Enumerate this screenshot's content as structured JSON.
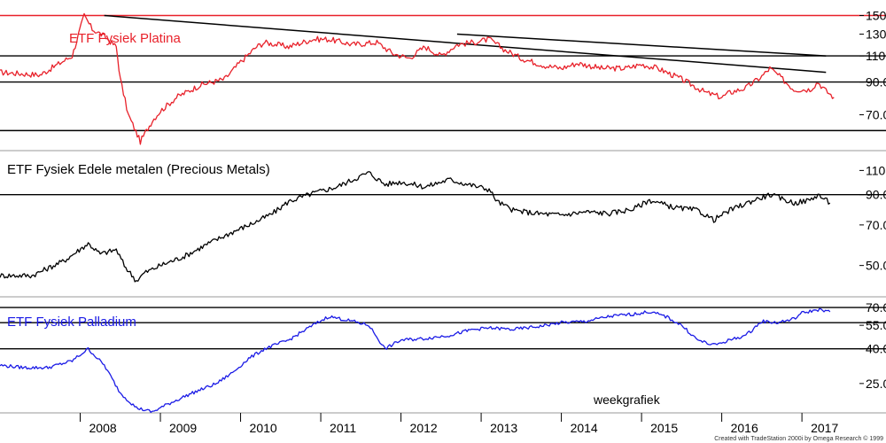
{
  "chart_data": {
    "type": "line",
    "layout": "three stacked panels, shared weekly time axis",
    "x_ticks": [
      "2008",
      "2009",
      "2010",
      "2011",
      "2012",
      "2013",
      "2014",
      "2015",
      "2016",
      "2017"
    ],
    "annotation": "weekgrafiek",
    "credit": "Created with TradeStation 2000i by Omega Research © 1999",
    "panels": [
      {
        "title": "ETF Fysiek Platina",
        "color": "#e8212a",
        "y_scale": "log",
        "y_ticks": [
          "150",
          "130",
          "110",
          "90.0",
          "70.0"
        ],
        "hlines": [
          {
            "value": 150,
            "color": "#e8212a"
          },
          {
            "value": 110,
            "color": "#000000"
          },
          {
            "value": 90,
            "color": "#000000"
          },
          {
            "value": 62,
            "color": "#000000"
          }
        ],
        "trendlines": [
          {
            "from": [
              2008.3,
              150
            ],
            "to": [
              2017.3,
              97
            ]
          },
          {
            "from": [
              2012.7,
              130
            ],
            "to": [
              2017.3,
              110
            ]
          }
        ],
        "series": [
          {
            "values": [
              [
                2007.0,
                97
              ],
              [
                2007.5,
                95
              ],
              [
                2007.9,
                110
              ],
              [
                2008.05,
                150
              ],
              [
                2008.15,
                135
              ],
              [
                2008.3,
                128
              ],
              [
                2008.45,
                118
              ],
              [
                2008.5,
                92
              ],
              [
                2008.6,
                70
              ],
              [
                2008.75,
                57
              ],
              [
                2008.9,
                67
              ],
              [
                2009.0,
                72
              ],
              [
                2009.2,
                80
              ],
              [
                2009.5,
                88
              ],
              [
                2009.8,
                92
              ],
              [
                2010.0,
                105
              ],
              [
                2010.2,
                118
              ],
              [
                2010.3,
                122
              ],
              [
                2010.6,
                118
              ],
              [
                2010.9,
                125
              ],
              [
                2011.1,
                125
              ],
              [
                2011.4,
                120
              ],
              [
                2011.7,
                122
              ],
              [
                2011.9,
                112
              ],
              [
                2012.1,
                108
              ],
              [
                2012.3,
                118
              ],
              [
                2012.5,
                110
              ],
              [
                2012.7,
                120
              ],
              [
                2012.9,
                122
              ],
              [
                2013.1,
                125
              ],
              [
                2013.3,
                115
              ],
              [
                2013.5,
                108
              ],
              [
                2013.8,
                102
              ],
              [
                2014.0,
                100
              ],
              [
                2014.2,
                104
              ],
              [
                2014.5,
                100
              ],
              [
                2014.8,
                100
              ],
              [
                2015.0,
                103
              ],
              [
                2015.2,
                100
              ],
              [
                2015.5,
                92
              ],
              [
                2015.8,
                83
              ],
              [
                2016.0,
                80
              ],
              [
                2016.1,
                83
              ],
              [
                2016.3,
                86
              ],
              [
                2016.5,
                94
              ],
              [
                2016.6,
                100
              ],
              [
                2016.7,
                95
              ],
              [
                2016.9,
                85
              ],
              [
                2017.1,
                85
              ],
              [
                2017.2,
                90
              ],
              [
                2017.3,
                84
              ],
              [
                2017.4,
                80
              ]
            ]
          }
        ]
      },
      {
        "title": "ETF Fysiek Edele metalen (Precious Metals)",
        "color": "#000000",
        "y_scale": "log",
        "y_ticks": [
          "110",
          "90.0",
          "70.0",
          "50.0"
        ],
        "hlines": [
          {
            "value": 90,
            "color": "#000000"
          }
        ],
        "series": [
          {
            "values": [
              [
                2007.0,
                46
              ],
              [
                2007.4,
                46
              ],
              [
                2007.8,
                52
              ],
              [
                2008.1,
                60
              ],
              [
                2008.25,
                55
              ],
              [
                2008.45,
                57
              ],
              [
                2008.55,
                50
              ],
              [
                2008.7,
                44
              ],
              [
                2008.8,
                47
              ],
              [
                2009.0,
                50
              ],
              [
                2009.3,
                54
              ],
              [
                2009.6,
                60
              ],
              [
                2009.9,
                66
              ],
              [
                2010.2,
                72
              ],
              [
                2010.4,
                77
              ],
              [
                2010.6,
                85
              ],
              [
                2010.9,
                91
              ],
              [
                2011.2,
                96
              ],
              [
                2011.5,
                105
              ],
              [
                2011.6,
                108
              ],
              [
                2011.8,
                98
              ],
              [
                2012.0,
                100
              ],
              [
                2012.3,
                96
              ],
              [
                2012.6,
                102
              ],
              [
                2012.9,
                97
              ],
              [
                2013.1,
                94
              ],
              [
                2013.2,
                85
              ],
              [
                2013.4,
                79
              ],
              [
                2013.7,
                77
              ],
              [
                2014.0,
                76
              ],
              [
                2014.3,
                78
              ],
              [
                2014.6,
                77
              ],
              [
                2014.9,
                80
              ],
              [
                2015.1,
                86
              ],
              [
                2015.4,
                81
              ],
              [
                2015.7,
                79
              ],
              [
                2015.9,
                73
              ],
              [
                2016.1,
                79
              ],
              [
                2016.4,
                86
              ],
              [
                2016.6,
                90
              ],
              [
                2016.9,
                84
              ],
              [
                2017.1,
                86
              ],
              [
                2017.2,
                90
              ],
              [
                2017.35,
                84
              ]
            ]
          }
        ]
      },
      {
        "title": "ETF Fysiek Palladium",
        "color": "#1a1ae6",
        "y_scale": "log",
        "y_ticks": [
          "70.0",
          "55.0",
          "40.0",
          "25.0"
        ],
        "hlines": [
          {
            "value": 70,
            "color": "#000000"
          },
          {
            "value": 57,
            "color": "#000000"
          },
          {
            "value": 40,
            "color": "#000000"
          }
        ],
        "series": [
          {
            "values": [
              [
                2007.0,
                32
              ],
              [
                2007.3,
                31
              ],
              [
                2007.6,
                31
              ],
              [
                2007.9,
                34
              ],
              [
                2008.1,
                40
              ],
              [
                2008.3,
                32
              ],
              [
                2008.5,
                22
              ],
              [
                2008.7,
                18
              ],
              [
                2008.9,
                17
              ],
              [
                2009.1,
                19
              ],
              [
                2009.4,
                22
              ],
              [
                2009.7,
                25
              ],
              [
                2009.9,
                29
              ],
              [
                2010.1,
                35
              ],
              [
                2010.3,
                40
              ],
              [
                2010.6,
                45
              ],
              [
                2010.9,
                55
              ],
              [
                2011.1,
                62
              ],
              [
                2011.4,
                58
              ],
              [
                2011.6,
                55
              ],
              [
                2011.8,
                40
              ],
              [
                2012.0,
                45
              ],
              [
                2012.3,
                46
              ],
              [
                2012.6,
                48
              ],
              [
                2012.9,
                52
              ],
              [
                2013.1,
                53
              ],
              [
                2013.4,
                52
              ],
              [
                2013.7,
                54
              ],
              [
                2014.0,
                57
              ],
              [
                2014.3,
                58
              ],
              [
                2014.6,
                62
              ],
              [
                2014.9,
                64
              ],
              [
                2015.1,
                66
              ],
              [
                2015.3,
                62
              ],
              [
                2015.5,
                55
              ],
              [
                2015.7,
                45
              ],
              [
                2015.9,
                42
              ],
              [
                2016.1,
                45
              ],
              [
                2016.3,
                48
              ],
              [
                2016.5,
                58
              ],
              [
                2016.7,
                57
              ],
              [
                2016.9,
                60
              ],
              [
                2017.0,
                65
              ],
              [
                2017.2,
                68
              ],
              [
                2017.35,
                66
              ]
            ]
          }
        ]
      }
    ]
  }
}
